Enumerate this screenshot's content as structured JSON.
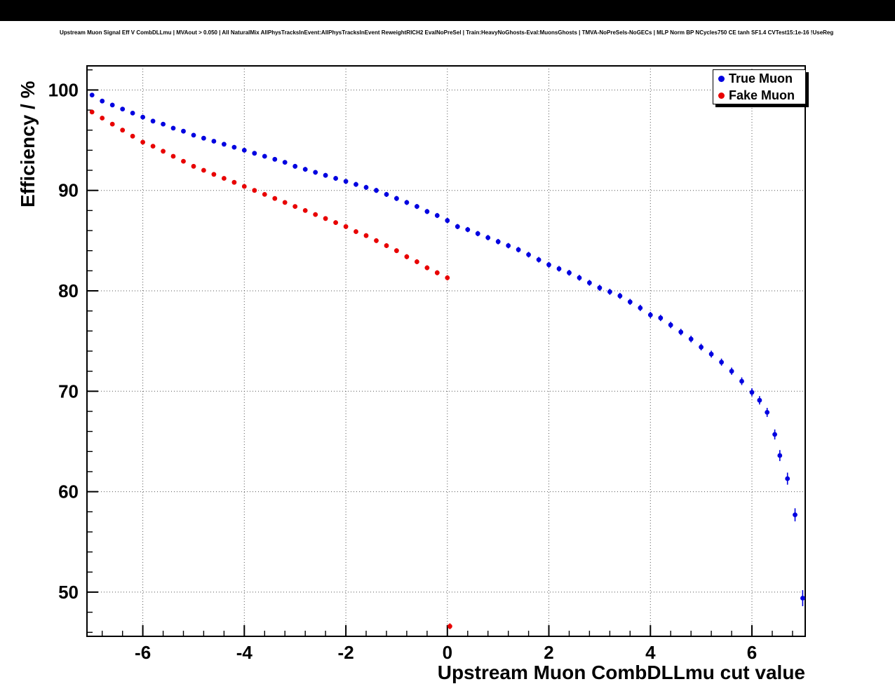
{
  "title": "Upstream Muon Signal Eff V CombDLLmu | MVAout > 0.050 | All NaturalMix AllPhysTracksInEvent:AllPhysTracksInEvent ReweightRICH2 EvalNoPreSel | Train:HeavyNoGhosts-Eval:MuonsGhosts | TMVA-NoPreSels-NoGECs | MLP Norm BP NCycles750 CE tanh SF1.4 CVTest15:1e-16 !UseReg",
  "chart_data": {
    "type": "scatter",
    "xlabel": "Upstream Muon CombDLLmu cut value",
    "ylabel": "Efficiency / %",
    "xlim": [
      -7.1,
      7.05
    ],
    "ylim": [
      45.6,
      102.4
    ],
    "x_ticks": [
      -6,
      -4,
      -2,
      0,
      2,
      4,
      6
    ],
    "y_ticks": [
      50,
      60,
      70,
      80,
      90,
      100
    ],
    "x_minor_step": 0.4,
    "x_major_step": 2,
    "y_minor_step": 2,
    "y_major_step": 10,
    "grid": "dotted",
    "legend_position": "top-right",
    "series": [
      {
        "name": "True Muon",
        "color": "#0000e0",
        "marker": "filled-circle",
        "points": [
          [
            -7.0,
            99.5,
            0.15
          ],
          [
            -6.8,
            98.9,
            0.15
          ],
          [
            -6.6,
            98.5,
            0.15
          ],
          [
            -6.4,
            98.1,
            0.18
          ],
          [
            -6.2,
            97.7,
            0.18
          ],
          [
            -6.0,
            97.3,
            0.18
          ],
          [
            -5.8,
            96.9,
            0.2
          ],
          [
            -5.6,
            96.6,
            0.2
          ],
          [
            -5.4,
            96.2,
            0.2
          ],
          [
            -5.2,
            95.9,
            0.2
          ],
          [
            -5.0,
            95.5,
            0.2
          ],
          [
            -4.8,
            95.2,
            0.2
          ],
          [
            -4.6,
            94.9,
            0.2
          ],
          [
            -4.4,
            94.6,
            0.22
          ],
          [
            -4.2,
            94.3,
            0.22
          ],
          [
            -4.0,
            94.0,
            0.22
          ],
          [
            -3.8,
            93.7,
            0.22
          ],
          [
            -3.6,
            93.4,
            0.22
          ],
          [
            -3.4,
            93.1,
            0.22
          ],
          [
            -3.2,
            92.8,
            0.22
          ],
          [
            -3.0,
            92.4,
            0.24
          ],
          [
            -2.8,
            92.1,
            0.24
          ],
          [
            -2.6,
            91.8,
            0.24
          ],
          [
            -2.4,
            91.5,
            0.24
          ],
          [
            -2.2,
            91.2,
            0.24
          ],
          [
            -2.0,
            90.9,
            0.24
          ],
          [
            -1.8,
            90.6,
            0.25
          ],
          [
            -1.6,
            90.3,
            0.25
          ],
          [
            -1.4,
            90.0,
            0.25
          ],
          [
            -1.2,
            89.6,
            0.25
          ],
          [
            -1.0,
            89.2,
            0.25
          ],
          [
            -0.8,
            88.8,
            0.25
          ],
          [
            -0.6,
            88.4,
            0.25
          ],
          [
            -0.4,
            87.9,
            0.25
          ],
          [
            -0.2,
            87.5,
            0.25
          ],
          [
            0.0,
            87.0,
            0.26
          ],
          [
            0.2,
            86.4,
            0.26
          ],
          [
            0.4,
            86.1,
            0.26
          ],
          [
            0.6,
            85.7,
            0.26
          ],
          [
            0.8,
            85.3,
            0.27
          ],
          [
            1.0,
            84.9,
            0.27
          ],
          [
            1.2,
            84.5,
            0.27
          ],
          [
            1.4,
            84.1,
            0.27
          ],
          [
            1.6,
            83.6,
            0.28
          ],
          [
            1.8,
            83.1,
            0.28
          ],
          [
            2.0,
            82.6,
            0.28
          ],
          [
            2.2,
            82.2,
            0.28
          ],
          [
            2.4,
            81.8,
            0.29
          ],
          [
            2.6,
            81.3,
            0.29
          ],
          [
            2.8,
            80.8,
            0.29
          ],
          [
            3.0,
            80.3,
            0.3
          ],
          [
            3.2,
            79.9,
            0.3
          ],
          [
            3.4,
            79.5,
            0.3
          ],
          [
            3.6,
            78.9,
            0.3
          ],
          [
            3.8,
            78.3,
            0.31
          ],
          [
            4.0,
            77.6,
            0.31
          ],
          [
            4.2,
            77.3,
            0.31
          ],
          [
            4.4,
            76.6,
            0.32
          ],
          [
            4.6,
            75.9,
            0.32
          ],
          [
            4.8,
            75.2,
            0.33
          ],
          [
            5.0,
            74.4,
            0.33
          ],
          [
            5.2,
            73.7,
            0.34
          ],
          [
            5.4,
            72.9,
            0.35
          ],
          [
            5.6,
            72.0,
            0.36
          ],
          [
            5.8,
            71.0,
            0.38
          ],
          [
            6.0,
            69.9,
            0.4
          ],
          [
            6.15,
            69.1,
            0.42
          ],
          [
            6.3,
            67.9,
            0.45
          ],
          [
            6.45,
            65.7,
            0.5
          ],
          [
            6.55,
            63.6,
            0.55
          ],
          [
            6.7,
            61.3,
            0.6
          ],
          [
            6.85,
            57.7,
            0.65
          ],
          [
            7.0,
            49.4,
            0.8
          ]
        ]
      },
      {
        "name": "Fake Muon",
        "color": "#e80000",
        "marker": "filled-circle",
        "points": [
          [
            -7.0,
            97.8,
            0.15
          ],
          [
            -6.8,
            97.2,
            0.16
          ],
          [
            -6.6,
            96.6,
            0.16
          ],
          [
            -6.4,
            96.0,
            0.17
          ],
          [
            -6.2,
            95.4,
            0.17
          ],
          [
            -6.0,
            94.8,
            0.18
          ],
          [
            -5.8,
            94.4,
            0.18
          ],
          [
            -5.6,
            93.9,
            0.18
          ],
          [
            -5.4,
            93.4,
            0.19
          ],
          [
            -5.2,
            92.9,
            0.19
          ],
          [
            -5.0,
            92.4,
            0.19
          ],
          [
            -4.8,
            92.0,
            0.2
          ],
          [
            -4.6,
            91.6,
            0.2
          ],
          [
            -4.4,
            91.2,
            0.2
          ],
          [
            -4.2,
            90.8,
            0.2
          ],
          [
            -4.0,
            90.4,
            0.21
          ],
          [
            -3.8,
            90.0,
            0.21
          ],
          [
            -3.6,
            89.6,
            0.21
          ],
          [
            -3.4,
            89.2,
            0.21
          ],
          [
            -3.2,
            88.8,
            0.22
          ],
          [
            -3.0,
            88.4,
            0.22
          ],
          [
            -2.8,
            88.0,
            0.22
          ],
          [
            -2.6,
            87.6,
            0.22
          ],
          [
            -2.4,
            87.2,
            0.23
          ],
          [
            -2.2,
            86.8,
            0.23
          ],
          [
            -2.0,
            86.4,
            0.23
          ],
          [
            -1.8,
            85.9,
            0.23
          ],
          [
            -1.6,
            85.5,
            0.24
          ],
          [
            -1.4,
            85.0,
            0.24
          ],
          [
            -1.2,
            84.5,
            0.24
          ],
          [
            -1.0,
            84.0,
            0.24
          ],
          [
            -0.8,
            83.4,
            0.25
          ],
          [
            -0.6,
            82.9,
            0.25
          ],
          [
            -0.4,
            82.3,
            0.25
          ],
          [
            -0.2,
            81.8,
            0.25
          ],
          [
            0.0,
            81.3,
            0.26
          ],
          [
            0.05,
            46.6,
            0.3
          ]
        ]
      }
    ]
  }
}
